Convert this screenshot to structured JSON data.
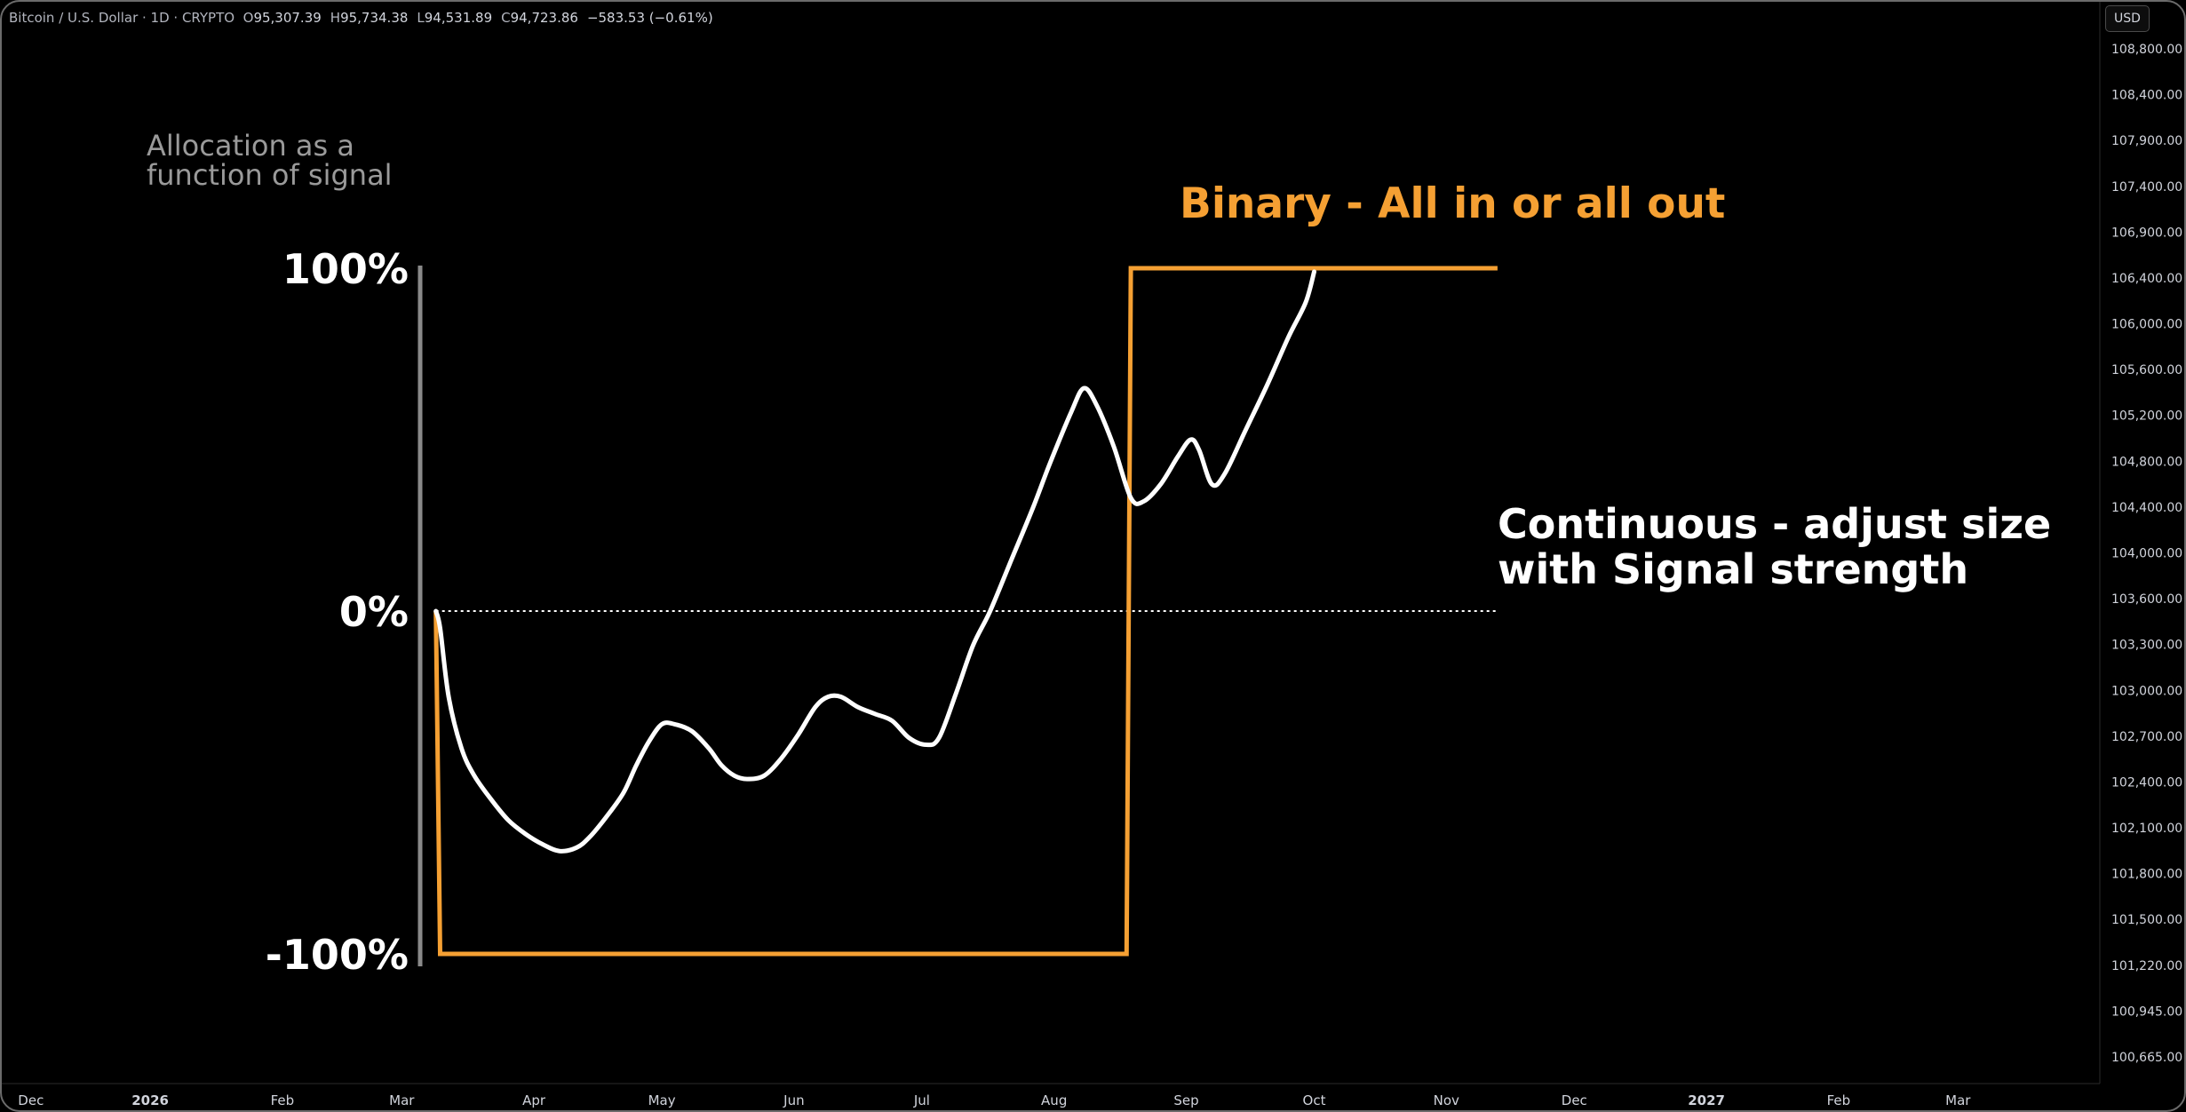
{
  "symbol_legend": {
    "symbol": "Bitcoin / U.S. Dollar · 1D · CRYPTO",
    "open_label": "O",
    "open": "95,307.39",
    "high_label": "H",
    "high": "95,734.38",
    "low_label": "L",
    "low": "94,531.89",
    "close_label": "C",
    "close": "94,723.86",
    "change": "−583.53 (−0.61%)"
  },
  "currency": "USD",
  "annotations": {
    "allocation_line1": "Allocation as a",
    "allocation_line2": "function of signal",
    "binary_label": "Binary - All in or all out",
    "continuous_line1": "Continuous - adjust size",
    "continuous_line2": "with Signal strength"
  },
  "colors": {
    "background": "#000000",
    "binary": "#f5a033",
    "continuous": "#ffffff",
    "axis_text": "#d1d4dc",
    "muted_text": "#9a9a9a"
  },
  "chart_data": {
    "type": "line",
    "x_unit": "day-of-year 2026",
    "y_unit": "allocation %",
    "ylim": [
      -100,
      100
    ],
    "y_ticks": [
      {
        "value": 100,
        "label": "100%"
      },
      {
        "value": 0,
        "label": "0%"
      },
      {
        "value": -100,
        "label": "-100%"
      }
    ],
    "zero_line": {
      "style": "dotted",
      "from": 67,
      "to": 316
    },
    "series": [
      {
        "style": "binary",
        "points": [
          [
            67,
            0
          ],
          [
            68,
            -100
          ],
          [
            229,
            -100
          ],
          [
            230,
            100
          ],
          [
            316,
            100
          ]
        ]
      },
      {
        "style": "continuous",
        "points": [
          [
            67,
            0
          ],
          [
            68,
            -5
          ],
          [
            70,
            -25
          ],
          [
            73,
            -40
          ],
          [
            76,
            -48
          ],
          [
            80,
            -55
          ],
          [
            84,
            -61
          ],
          [
            88,
            -65
          ],
          [
            92,
            -68
          ],
          [
            96,
            -70
          ],
          [
            100,
            -69
          ],
          [
            103,
            -66
          ],
          [
            107,
            -60
          ],
          [
            111,
            -53
          ],
          [
            114,
            -45
          ],
          [
            117,
            -38
          ],
          [
            120,
            -33
          ],
          [
            123,
            -33
          ],
          [
            127,
            -35
          ],
          [
            131,
            -40
          ],
          [
            134,
            -45
          ],
          [
            137,
            -48
          ],
          [
            140,
            -49
          ],
          [
            144,
            -48
          ],
          [
            148,
            -43
          ],
          [
            152,
            -36
          ],
          [
            156,
            -28
          ],
          [
            159,
            -25
          ],
          [
            162,
            -25
          ],
          [
            166,
            -28
          ],
          [
            170,
            -30
          ],
          [
            174,
            -32
          ],
          [
            178,
            -37
          ],
          [
            182,
            -39
          ],
          [
            185,
            -37
          ],
          [
            189,
            -24
          ],
          [
            193,
            -10
          ],
          [
            197,
            0
          ],
          [
            202,
            15
          ],
          [
            207,
            30
          ],
          [
            211,
            43
          ],
          [
            216,
            58
          ],
          [
            219,
            65
          ],
          [
            222,
            60
          ],
          [
            226,
            48
          ],
          [
            230,
            33
          ],
          [
            233,
            32
          ],
          [
            237,
            37
          ],
          [
            241,
            45
          ],
          [
            244,
            50
          ],
          [
            246,
            47
          ],
          [
            249,
            37
          ],
          [
            252,
            40
          ],
          [
            257,
            53
          ],
          [
            262,
            66
          ],
          [
            267,
            80
          ],
          [
            271,
            90
          ],
          [
            273,
            99
          ]
        ]
      }
    ]
  },
  "price_axis": {
    "ticks": [
      {
        "value": "108,800.00",
        "label": "108,800.00"
      },
      {
        "value": "108,400.00",
        "label": "108,400.00"
      },
      {
        "value": "107,900.00",
        "label": "107,900.00"
      },
      {
        "value": "107,400.00",
        "label": "107,400.00"
      },
      {
        "value": "106,900.00",
        "label": "106,900.00"
      },
      {
        "value": "106,400.00",
        "label": "106,400.00"
      },
      {
        "value": "106,000.00",
        "label": "106,000.00"
      },
      {
        "value": "105,600.00",
        "label": "105,600.00"
      },
      {
        "value": "105,200.00",
        "label": "105,200.00"
      },
      {
        "value": "104,800.00",
        "label": "104,800.00"
      },
      {
        "value": "104,400.00",
        "label": "104,400.00"
      },
      {
        "value": "104,000.00",
        "label": "104,000.00"
      },
      {
        "value": "103,600.00",
        "label": "103,600.00"
      },
      {
        "value": "103,300.00",
        "label": "103,300.00"
      },
      {
        "value": "103,000.00",
        "label": "103,000.00"
      },
      {
        "value": "102,700.00",
        "label": "102,700.00"
      },
      {
        "value": "102,400.00",
        "label": "102,400.00"
      },
      {
        "value": "102,100.00",
        "label": "102,100.00"
      },
      {
        "value": "101,800.00",
        "label": "101,800.00"
      },
      {
        "value": "101,500.00",
        "label": "101,500.00"
      },
      {
        "value": "101,220.00",
        "label": "101,220.00"
      },
      {
        "value": "100,945.00",
        "label": "100,945.00"
      },
      {
        "value": "100,665.00",
        "label": "100,665.00"
      }
    ]
  },
  "time_axis": {
    "ticks": [
      {
        "label": "Dec",
        "day": -31,
        "bold": false
      },
      {
        "label": "2026",
        "day": 0,
        "bold": true
      },
      {
        "label": "Feb",
        "day": 31,
        "bold": false
      },
      {
        "label": "Mar",
        "day": 59,
        "bold": false
      },
      {
        "label": "Apr",
        "day": 90,
        "bold": false
      },
      {
        "label": "May",
        "day": 120,
        "bold": false
      },
      {
        "label": "Jun",
        "day": 151,
        "bold": false
      },
      {
        "label": "Jul",
        "day": 181,
        "bold": false
      },
      {
        "label": "Aug",
        "day": 212,
        "bold": false
      },
      {
        "label": "Sep",
        "day": 243,
        "bold": false
      },
      {
        "label": "Oct",
        "day": 273,
        "bold": false
      },
      {
        "label": "Nov",
        "day": 304,
        "bold": false
      },
      {
        "label": "Dec",
        "day": 334,
        "bold": false
      },
      {
        "label": "2027",
        "day": 365,
        "bold": true
      },
      {
        "label": "Feb",
        "day": 396,
        "bold": false
      },
      {
        "label": "Mar",
        "day": 424,
        "bold": false
      }
    ]
  }
}
